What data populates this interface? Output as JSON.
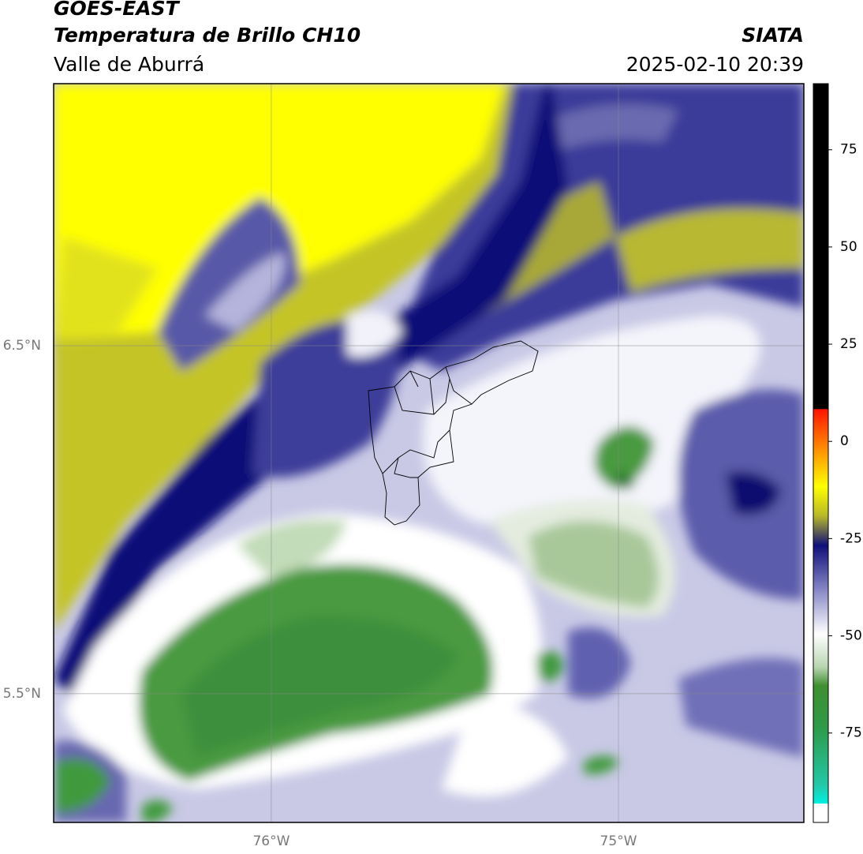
{
  "map_data": {
    "title": "GOES-EAST",
    "subtitle": "Temperatura de Brillo CH10",
    "region": "Valle de Aburrá",
    "source": "SIATA",
    "timestamp": "2025-02-10 20:39",
    "lonlim": [
      -76.627,
      -74.466
    ],
    "latlim": [
      5.13,
      7.253
    ],
    "xticks": [
      {
        "value": -76,
        "label": "76°W"
      },
      {
        "value": -75,
        "label": "75°W"
      }
    ],
    "yticks": [
      {
        "value": 6.5,
        "label": "6.5°N"
      },
      {
        "value": 5.5,
        "label": "5.5°N"
      }
    ],
    "grid": true,
    "colorbar": {
      "lim": [
        -98,
        92
      ],
      "ticks": [
        75,
        50,
        25,
        0,
        -25,
        -50,
        -75
      ]
    }
  }
}
